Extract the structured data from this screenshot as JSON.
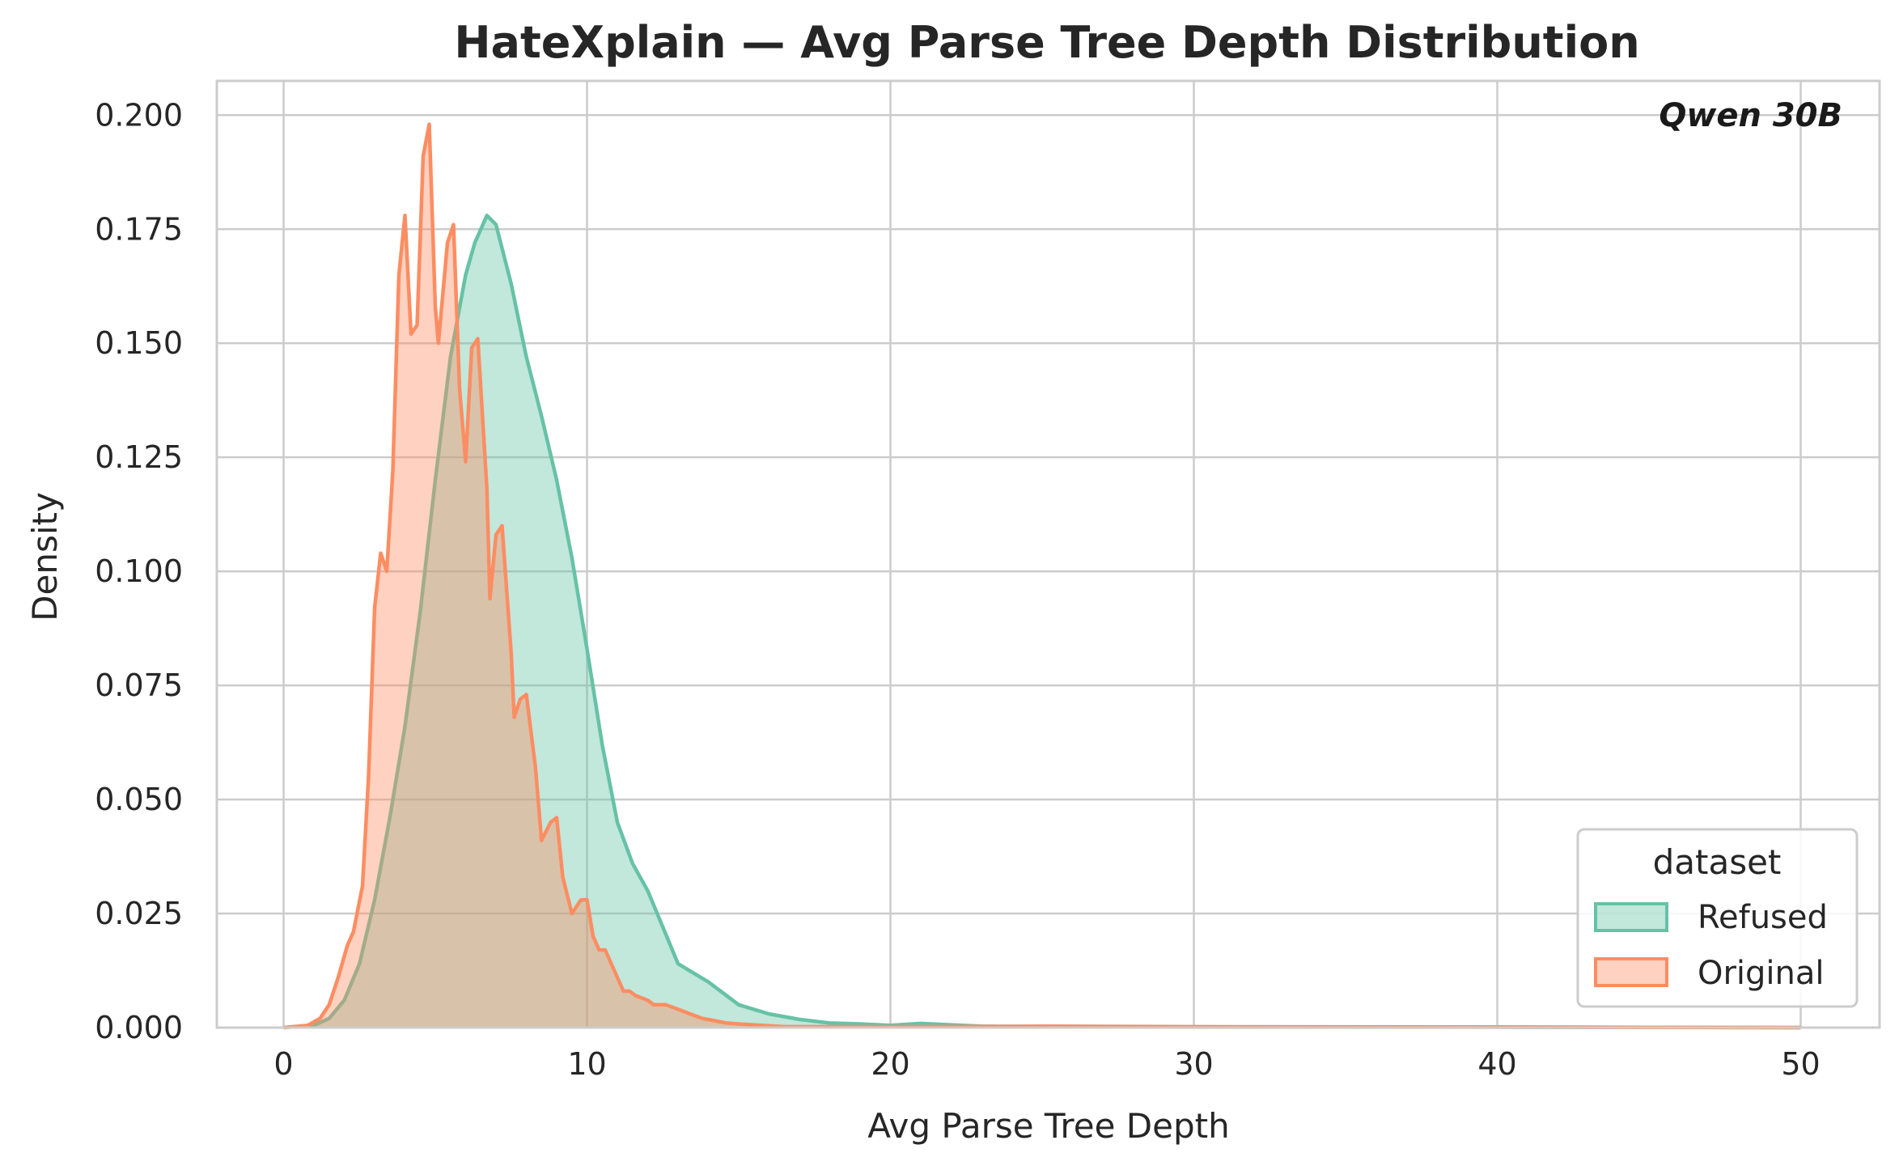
{
  "chart_data": {
    "type": "area",
    "title": "HateXplain — Avg Parse Tree Depth Distribution",
    "xlabel": "Avg Parse Tree Depth",
    "ylabel": "Density",
    "xlim": [
      -2.2,
      52.6
    ],
    "ylim": [
      0,
      0.2075
    ],
    "x_ticks": [
      0,
      10,
      20,
      30,
      40,
      50
    ],
    "x_tick_labels": [
      "0",
      "10",
      "20",
      "30",
      "40",
      "50"
    ],
    "y_ticks": [
      0,
      0.025,
      0.05,
      0.075,
      0.1,
      0.125,
      0.15,
      0.175,
      0.2
    ],
    "y_tick_labels": [
      "0.000",
      "0.025",
      "0.050",
      "0.075",
      "0.100",
      "0.125",
      "0.150",
      "0.175",
      "0.200"
    ],
    "grid": true,
    "annotation": "Qwen 30B",
    "legend": {
      "title": "dataset",
      "placement": "bottom-right"
    },
    "series": [
      {
        "name": "Refused",
        "line_color": "#66c2a5",
        "fill_color": "#66c2a5",
        "x": [
          0,
          1,
          1.5,
          2,
          2.5,
          3,
          3.5,
          4,
          4.5,
          5,
          5.5,
          6,
          6.3,
          6.7,
          7,
          7.5,
          8,
          8.5,
          9,
          9.5,
          10,
          10.5,
          11,
          11.5,
          12,
          12.5,
          13,
          13.5,
          14,
          15,
          16,
          17,
          18,
          19,
          20,
          21,
          22,
          23,
          24,
          26,
          30,
          40,
          50
        ],
        "y": [
          0,
          0.0005,
          0.002,
          0.006,
          0.014,
          0.028,
          0.046,
          0.066,
          0.091,
          0.12,
          0.147,
          0.165,
          0.172,
          0.178,
          0.176,
          0.163,
          0.147,
          0.134,
          0.12,
          0.103,
          0.083,
          0.062,
          0.045,
          0.036,
          0.03,
          0.022,
          0.014,
          0.012,
          0.01,
          0.005,
          0.003,
          0.0018,
          0.001,
          0.0008,
          0.0005,
          0.0009,
          0.0006,
          0.0003,
          0.0002,
          0.0002,
          0.0001,
          0.0001,
          0
        ]
      },
      {
        "name": "Original",
        "line_color": "#fc8d62",
        "fill_color": "#fc8d62",
        "x": [
          0,
          0.8,
          1.2,
          1.5,
          1.8,
          2.1,
          2.3,
          2.6,
          2.8,
          3.0,
          3.2,
          3.4,
          3.6,
          3.8,
          4.0,
          4.2,
          4.4,
          4.6,
          4.8,
          5.0,
          5.1,
          5.4,
          5.6,
          5.8,
          6.0,
          6.2,
          6.4,
          6.7,
          6.8,
          7.0,
          7.2,
          7.5,
          7.6,
          7.8,
          8.0,
          8.3,
          8.5,
          8.8,
          9.0,
          9.2,
          9.5,
          9.8,
          10.0,
          10.2,
          10.4,
          10.6,
          10.8,
          11.2,
          11.4,
          11.6,
          12.0,
          12.2,
          12.6,
          13.0,
          13.4,
          13.8,
          14.2,
          14.6,
          15.0,
          15.5,
          16.0,
          16.5,
          17.0,
          18.0,
          20.0,
          25.0,
          30.0,
          40.0,
          50.0
        ],
        "y": [
          0,
          0.0005,
          0.002,
          0.005,
          0.011,
          0.018,
          0.021,
          0.031,
          0.055,
          0.092,
          0.104,
          0.1,
          0.122,
          0.165,
          0.178,
          0.152,
          0.154,
          0.191,
          0.198,
          0.158,
          0.15,
          0.172,
          0.176,
          0.14,
          0.124,
          0.149,
          0.151,
          0.118,
          0.094,
          0.108,
          0.11,
          0.082,
          0.068,
          0.072,
          0.073,
          0.057,
          0.041,
          0.045,
          0.046,
          0.033,
          0.025,
          0.028,
          0.028,
          0.02,
          0.017,
          0.017,
          0.014,
          0.008,
          0.008,
          0.007,
          0.006,
          0.005,
          0.005,
          0.004,
          0.003,
          0.002,
          0.0015,
          0.001,
          0.0008,
          0.0006,
          0.0004,
          0.0002,
          0.0002,
          0.0002,
          0.0002,
          0.0003,
          0.0002,
          0.0001,
          0
        ]
      }
    ]
  }
}
